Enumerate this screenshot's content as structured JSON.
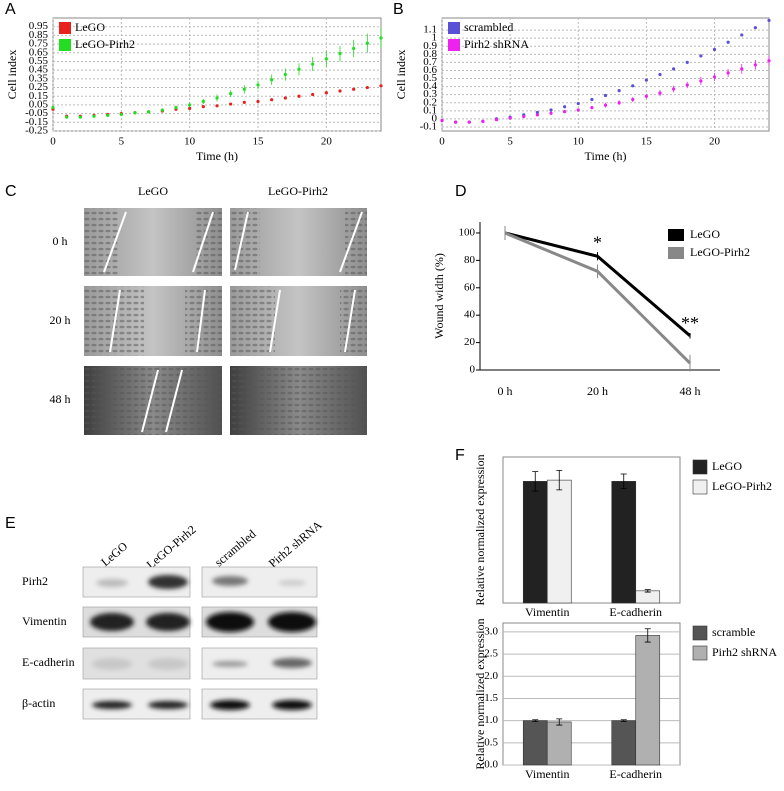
{
  "panel_labels": [
    "A",
    "B",
    "C",
    "D",
    "E",
    "F"
  ],
  "chart_data": [
    {
      "type": "line",
      "markers": true,
      "ylabel": "Cell index",
      "xlabel": "Time (h)",
      "grid": true,
      "legend": "upper left",
      "x": [
        0,
        1,
        2,
        3,
        4,
        5,
        6,
        7,
        8,
        9,
        10,
        11,
        12,
        13,
        14,
        15,
        16,
        17,
        18,
        19,
        20,
        21,
        22,
        23,
        24
      ],
      "xlim": [
        0,
        24
      ],
      "xticks": [
        0,
        5,
        10,
        15,
        20
      ],
      "ylim": [
        -0.25,
        1.05
      ],
      "yticks": [
        -0.25,
        -0.15,
        -0.05,
        0.05,
        0.15,
        0.25,
        0.35,
        0.45,
        0.55,
        0.65,
        0.75,
        0.85,
        0.95
      ],
      "series": [
        {
          "name": "LeGO",
          "color": "#e8211d",
          "values": [
            0.0,
            -0.08,
            -0.08,
            -0.07,
            -0.06,
            -0.05,
            -0.04,
            -0.03,
            -0.02,
            0.0,
            0.01,
            0.03,
            0.04,
            0.06,
            0.08,
            0.09,
            0.11,
            0.13,
            0.15,
            0.17,
            0.19,
            0.21,
            0.23,
            0.25,
            0.27
          ]
        },
        {
          "name": "LeGO-Pirh2",
          "color": "#22dd22",
          "values": [
            0.02,
            -0.09,
            -0.09,
            -0.08,
            -0.07,
            -0.06,
            -0.04,
            -0.03,
            -0.01,
            0.02,
            0.05,
            0.09,
            0.13,
            0.18,
            0.23,
            0.28,
            0.34,
            0.4,
            0.46,
            0.52,
            0.58,
            0.64,
            0.7,
            0.76,
            0.82
          ],
          "errors": [
            0.01,
            0.01,
            0.01,
            0.01,
            0.01,
            0.01,
            0.01,
            0.02,
            0.02,
            0.02,
            0.03,
            0.03,
            0.04,
            0.04,
            0.05,
            0.05,
            0.06,
            0.07,
            0.07,
            0.08,
            0.09,
            0.09,
            0.1,
            0.11,
            0.12
          ]
        }
      ]
    },
    {
      "type": "line",
      "markers": true,
      "ylabel": "Cell index",
      "xlabel": "Time (h)",
      "grid": true,
      "legend": "upper left",
      "x": [
        0,
        1,
        2,
        3,
        4,
        5,
        6,
        7,
        8,
        9,
        10,
        11,
        12,
        13,
        14,
        15,
        16,
        17,
        18,
        19,
        20,
        21,
        22,
        23,
        24
      ],
      "xlim": [
        0,
        24
      ],
      "xticks": [
        0,
        5,
        10,
        15,
        20
      ],
      "ylim": [
        -0.15,
        1.25
      ],
      "yticks": [
        -0.1,
        0,
        0.1,
        0.2,
        0.3,
        0.4,
        0.5,
        0.6,
        0.7,
        0.8,
        0.9,
        1,
        1.1
      ],
      "series": [
        {
          "name": "scrambled",
          "color": "#5a50d6",
          "values": [
            -0.02,
            -0.04,
            -0.04,
            -0.03,
            0.0,
            0.02,
            0.05,
            0.08,
            0.11,
            0.15,
            0.19,
            0.24,
            0.29,
            0.35,
            0.41,
            0.48,
            0.55,
            0.62,
            0.7,
            0.78,
            0.86,
            0.95,
            1.04,
            1.13,
            1.22
          ]
        },
        {
          "name": "Pirh2 shRNA",
          "color": "#ee22ee",
          "values": [
            -0.02,
            -0.04,
            -0.04,
            -0.03,
            -0.01,
            0.01,
            0.03,
            0.05,
            0.07,
            0.09,
            0.11,
            0.14,
            0.17,
            0.2,
            0.24,
            0.28,
            0.32,
            0.37,
            0.42,
            0.47,
            0.52,
            0.57,
            0.62,
            0.67,
            0.72
          ],
          "errors": [
            0.01,
            0.01,
            0.01,
            0.01,
            0.01,
            0.01,
            0.01,
            0.01,
            0.02,
            0.02,
            0.02,
            0.02,
            0.03,
            0.03,
            0.03,
            0.03,
            0.04,
            0.04,
            0.04,
            0.05,
            0.05,
            0.05,
            0.06,
            0.06,
            0.06
          ]
        }
      ]
    },
    {
      "type": "line",
      "markers": false,
      "ylabel": "Wound width (%)",
      "grid": false,
      "legend": "upper right",
      "categories": [
        "0 h",
        "20 h",
        "48 h"
      ],
      "ylim": [
        0,
        108
      ],
      "yticks": [
        0,
        20,
        40,
        60,
        80,
        100
      ],
      "series": [
        {
          "name": "LeGO",
          "color": "#000000",
          "values": [
            100,
            83,
            25
          ],
          "errors": [
            5,
            3,
            2
          ]
        },
        {
          "name": "LeGO-Pirh2",
          "color": "#888888",
          "values": [
            100,
            72,
            5
          ],
          "errors": [
            5,
            5,
            6
          ]
        }
      ],
      "annotations": [
        {
          "text": "*",
          "category": "20 h"
        },
        {
          "text": "**",
          "category": "48 h"
        }
      ]
    },
    {
      "type": "bar",
      "ylabel": "Relative normalized expression",
      "legend": "right",
      "categories": [
        "Vimentin",
        "E-cadherin"
      ],
      "ylim": [
        0,
        1.2
      ],
      "series": [
        {
          "name": "LeGO",
          "color": "#222222",
          "values": [
            1.0,
            1.0
          ],
          "errors": [
            0.08,
            0.06
          ]
        },
        {
          "name": "LeGO-Pirh2",
          "color": "#f0f0f0",
          "values": [
            1.01,
            0.1
          ],
          "errors": [
            0.08,
            0.01
          ]
        }
      ]
    },
    {
      "type": "bar",
      "ylabel": "Relative normalized expression",
      "legend": "right",
      "grid": true,
      "categories": [
        "Vimentin",
        "E-cadherin"
      ],
      "ylim": [
        0,
        3.2
      ],
      "yticks": [
        {
          "value": 0,
          "label": "0.0"
        },
        {
          "value": 0.5,
          "label": "0.5"
        },
        {
          "value": 1,
          "label": "1.0"
        },
        {
          "value": 1.5,
          "label": "1.5"
        },
        {
          "value": 2,
          "label": "2.0"
        },
        {
          "value": 2.5,
          "label": "2.5"
        },
        {
          "value": 3,
          "label": "3.0"
        }
      ],
      "series": [
        {
          "name": "scramble",
          "color": "#555555",
          "values": [
            1.0,
            1.0
          ],
          "errors": [
            0.02,
            0.02
          ]
        },
        {
          "name": "Pirh2 shRNA",
          "color": "#b0b0b0",
          "values": [
            0.97,
            2.92
          ],
          "errors": [
            0.07,
            0.15
          ]
        }
      ]
    }
  ],
  "wound_images": {
    "columns": [
      "LeGO",
      "LeGO-Pirh2"
    ],
    "rows": [
      "0 h",
      "20 h",
      "48 h"
    ]
  },
  "western_blot": {
    "columns": [
      "LeGO",
      "LeGO-Pirh2",
      "scrambled",
      "Pirh2 shRNA"
    ],
    "rows": [
      "Pirh2",
      "Vimentin",
      "E-cadherin",
      "β-actin"
    ]
  }
}
